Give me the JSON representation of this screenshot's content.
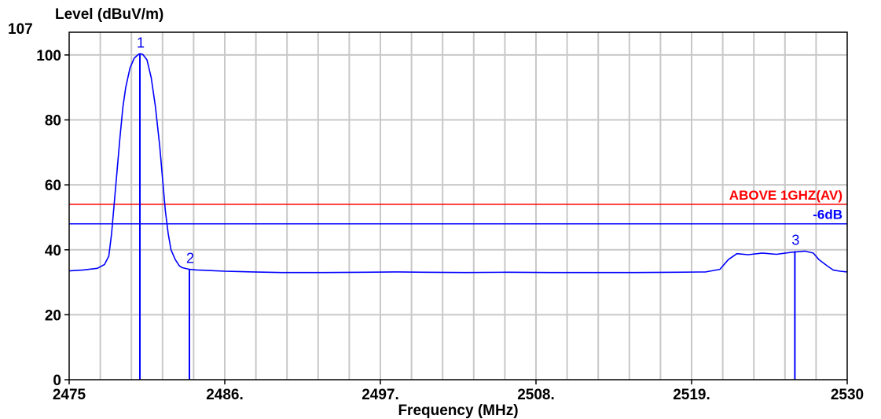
{
  "chart_data": {
    "type": "line",
    "title": "",
    "ylabel": "Level (dBuV/m)",
    "xlabel": "Frequency (MHz)",
    "xlim": [
      2475,
      2530
    ],
    "ylim": [
      0,
      107
    ],
    "x_ticks": [
      2475,
      2486,
      2497,
      2508,
      2519,
      2530
    ],
    "x_tick_labels": [
      "2475",
      "2486.",
      "2497.",
      "2508.",
      "2519.",
      "2530"
    ],
    "y_ticks": [
      0,
      20,
      40,
      60,
      80,
      100
    ],
    "y_tick_labels": [
      "0",
      "20",
      "40",
      "60",
      "80",
      "100"
    ],
    "y_top_label": "107",
    "grid": true,
    "series": [
      {
        "color": "#0000ff",
        "points": [
          [
            2475.0,
            33.5
          ],
          [
            2476.0,
            33.8
          ],
          [
            2477.0,
            34.3
          ],
          [
            2477.5,
            35.5
          ],
          [
            2477.8,
            38.0
          ],
          [
            2478.0,
            45.0
          ],
          [
            2478.2,
            55.0
          ],
          [
            2478.4,
            65.0
          ],
          [
            2478.6,
            75.0
          ],
          [
            2478.8,
            84.0
          ],
          [
            2479.0,
            90.0
          ],
          [
            2479.3,
            96.0
          ],
          [
            2479.6,
            99.0
          ],
          [
            2479.9,
            100.2
          ],
          [
            2480.0,
            100.4
          ],
          [
            2480.2,
            100.2
          ],
          [
            2480.5,
            98.5
          ],
          [
            2480.8,
            93.0
          ],
          [
            2481.1,
            84.0
          ],
          [
            2481.4,
            72.0
          ],
          [
            2481.6,
            62.0
          ],
          [
            2481.8,
            52.0
          ],
          [
            2482.0,
            45.0
          ],
          [
            2482.2,
            40.0
          ],
          [
            2482.5,
            37.0
          ],
          [
            2482.8,
            35.0
          ],
          [
            2483.0,
            34.5
          ],
          [
            2483.5,
            34.0
          ],
          [
            2484.0,
            33.8
          ],
          [
            2485.0,
            33.6
          ],
          [
            2486.0,
            33.4
          ],
          [
            2487.0,
            33.3
          ],
          [
            2488.0,
            33.2
          ],
          [
            2490.0,
            33.0
          ],
          [
            2493.0,
            33.0
          ],
          [
            2496.0,
            33.1
          ],
          [
            2498.0,
            33.2
          ],
          [
            2500.0,
            33.1
          ],
          [
            2503.0,
            33.0
          ],
          [
            2506.0,
            33.1
          ],
          [
            2509.0,
            33.0
          ],
          [
            2512.0,
            33.0
          ],
          [
            2515.0,
            33.0
          ],
          [
            2518.0,
            33.1
          ],
          [
            2520.0,
            33.2
          ],
          [
            2521.0,
            34.0
          ],
          [
            2521.6,
            37.0
          ],
          [
            2522.2,
            38.8
          ],
          [
            2523.0,
            38.5
          ],
          [
            2524.0,
            39.0
          ],
          [
            2525.0,
            38.6
          ],
          [
            2526.0,
            39.2
          ],
          [
            2527.0,
            39.6
          ],
          [
            2527.6,
            39.0
          ],
          [
            2528.0,
            37.0
          ],
          [
            2528.6,
            35.0
          ],
          [
            2529.0,
            33.8
          ],
          [
            2529.5,
            33.4
          ],
          [
            2530.0,
            33.2
          ]
        ]
      }
    ],
    "limit_lines": [
      {
        "label": "ABOVE 1GHZ(AV)",
        "value": 54,
        "color": "#ff0000"
      },
      {
        "label": "-6dB",
        "value": 48,
        "color": "#0000ff"
      }
    ],
    "markers": [
      {
        "label": "1",
        "x": 2480.0,
        "y": 100.4
      },
      {
        "label": "2",
        "x": 2483.5,
        "y": 34.0
      },
      {
        "label": "3",
        "x": 2526.3,
        "y": 39.6
      }
    ]
  }
}
